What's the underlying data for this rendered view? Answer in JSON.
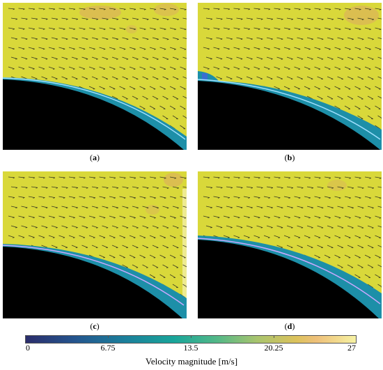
{
  "panels": [
    {
      "id": "a",
      "label": "a"
    },
    {
      "id": "b",
      "label": "b"
    },
    {
      "id": "c",
      "label": "c"
    },
    {
      "id": "d",
      "label": "d"
    }
  ],
  "colorbar": {
    "title": "Velocity magnitude [m/s]",
    "ticks": [
      "0",
      "6.75",
      "13.5",
      "20.25",
      "27"
    ],
    "colors": {
      "low": "#2b2d6b",
      "mid": "#19a59a",
      "high": "#f6f2a4",
      "field": "#d9d83a",
      "solid": "#000000"
    }
  }
}
